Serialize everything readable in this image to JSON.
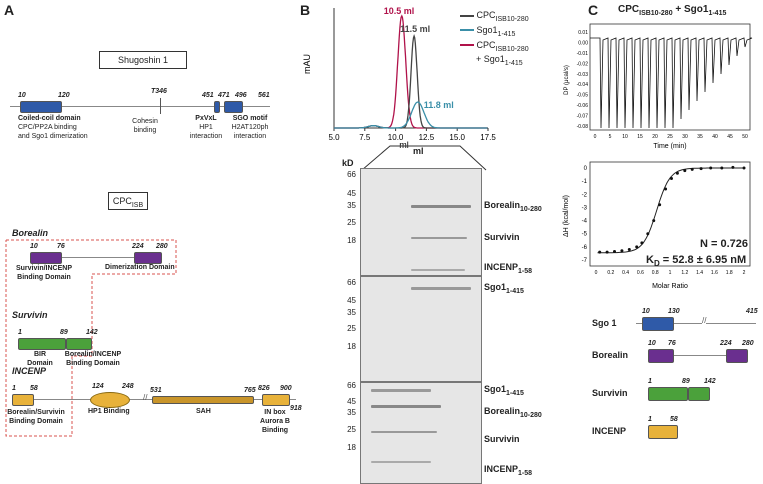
{
  "panels": {
    "a": "A",
    "b": "B",
    "c": "C"
  },
  "panelA": {
    "sgo_title": "Shugoshin 1",
    "sgo_nums": {
      "n10": "10",
      "n120": "120",
      "n346": "T346",
      "n451": "451",
      "n471": "471",
      "n496": "496",
      "n561": "561"
    },
    "coiled_title": "Coiled-coil domain",
    "coiled_desc1": "CPC/PP2A binding",
    "coiled_desc2": "and Sgo1 dimerization",
    "cohesin1": "Cohesin",
    "cohesin2": "binding",
    "pxvxl1": "PxVxL",
    "pxvxl2": "HP1",
    "pxvxl3": "interaction",
    "sgo_motif1": "SGO motif",
    "sgo_motif2": "H2AT120ph",
    "sgo_motif3": "interaction",
    "cpc_title": "CPC",
    "cpc_sub": "ISB",
    "borealin": "Borealin",
    "bor_nums": {
      "n10": "10",
      "n76": "76",
      "n224": "224",
      "n280": "280"
    },
    "bor_dom1a": "Survivin/INCENP",
    "bor_dom1b": "Binding Domain",
    "bor_dom2": "Dimerization Domain",
    "survivin": "Survivin",
    "sur_nums": {
      "n1": "1",
      "n89": "89",
      "n142": "142"
    },
    "sur_d1a": "BIR",
    "sur_d1b": "Domain",
    "sur_d2a": "Borealin/INCENP",
    "sur_d2b": "Binding Domain",
    "incenp": "INCENP",
    "inc_nums": {
      "n1": "1",
      "n58": "58",
      "n124": "124",
      "n248": "248",
      "n531": "531",
      "n765": "765",
      "n826": "826",
      "n900": "900",
      "n918": "918"
    },
    "inc_d1a": "Borealin/Survivin",
    "inc_d1b": "Binding Domain",
    "inc_hp1": "HP1 Binding",
    "inc_sah": "SAH",
    "inc_in1": "IN box",
    "inc_in2": "Aurora B",
    "inc_in3": "Binding"
  },
  "panelB": {
    "chart_data": {
      "type": "line",
      "xlabel": "ml",
      "ylabel": "mAU",
      "xlim": [
        5.0,
        17.5
      ],
      "xticks": [
        "5.0",
        "7.5",
        "10.0",
        "12.5",
        "15.0",
        "17.5"
      ],
      "series": [
        {
          "name": "CPC_ISB10-280 + Sgo1_1-415",
          "color": "#b0124a",
          "peak_ml": 10.5,
          "peak_label": "10.5 ml"
        },
        {
          "name": "CPC_ISB10-280",
          "color": "#444444",
          "peak_ml": 11.5,
          "peak_label": "11.5 ml"
        },
        {
          "name": "Sgo1_1-415",
          "color": "#3a8fa8",
          "peak_ml": 11.8,
          "peak_label": "11.8 ml"
        }
      ],
      "legend": {
        "l1a": "CPC",
        "l1b": "ISB10-280",
        "l2a": "Sgo1",
        "l2b": "1-415",
        "l3a": "CPC",
        "l3b": "ISB10-280",
        "l3c": "+ Sgo1",
        "l3d": "1-415"
      }
    },
    "gel_ml": "ml",
    "gel_kd": "kD",
    "markers": [
      "66",
      "45",
      "35",
      "25",
      "18"
    ],
    "gel1": {
      "borealin": "Borealin",
      "borealin_sub": "10-280",
      "survivin": "Survivin",
      "incenp": "INCENP",
      "incenp_sub": "1-58"
    },
    "gel2": {
      "sgo": "Sgo1",
      "sgo_sub": "1-415"
    },
    "gel3": {
      "sgo": "Sgo1",
      "sgo_sub": "1-415",
      "borealin": "Borealin",
      "borealin_sub": "10-280",
      "survivin": "Survivin",
      "incenp": "INCENP",
      "incenp_sub": "1-58"
    }
  },
  "panelC": {
    "title": "CPC",
    "title_sub1": "ISB10-280",
    "title_mid": " + Sgo1",
    "title_sub2": "1-415",
    "itc_ylabel": "DP (μcal/s)",
    "itc_xlabel": "Time (min)",
    "itc_yticks": [
      "0.01",
      "0.00",
      "-0.01",
      "-0.02",
      "-0.03",
      "-0.04",
      "-0.05",
      "-0.06",
      "-0.07",
      "-0.08"
    ],
    "itc_xticks": [
      "0",
      "5",
      "10",
      "15",
      "20",
      "25",
      "30",
      "35",
      "40",
      "45",
      "50"
    ],
    "iso_ylabel": "ΔH (kcal/mol)",
    "iso_xlabel": "Molar Ratio",
    "iso_yticks": [
      "0",
      "-1",
      "-2",
      "-3",
      "-4",
      "-5",
      "-6",
      "-7"
    ],
    "iso_xticks": [
      "0",
      "0.2",
      "0.4",
      "0.6",
      "0.8",
      "1",
      "1.2",
      "1.4",
      "1.6",
      "1.8",
      "2"
    ],
    "iso_points_x": [
      0.05,
      0.15,
      0.25,
      0.35,
      0.45,
      0.55,
      0.62,
      0.7,
      0.78,
      0.86,
      0.94,
      1.02,
      1.1,
      1.2,
      1.3,
      1.42,
      1.55,
      1.7,
      1.85,
      2.0
    ],
    "iso_points_y": [
      -6.4,
      -6.4,
      -6.35,
      -6.3,
      -6.2,
      -6.0,
      -5.7,
      -5.0,
      -4.0,
      -2.8,
      -1.6,
      -0.8,
      -0.4,
      -0.2,
      -0.1,
      -0.05,
      0,
      0,
      0.05,
      0
    ],
    "n_value": "N = 0.726",
    "kd_label": "K",
    "kd_sub": "D",
    "kd_value": " = 52.8 ± 6.95 nM",
    "constructs": [
      {
        "name": "Sgo 1",
        "n1": "10",
        "n2": "130",
        "n3": "415"
      },
      {
        "name": "Borealin",
        "n1": "10",
        "n2": "76",
        "n3": "224",
        "n4": "280"
      },
      {
        "name": "Survivin",
        "n1": "1",
        "n2": "89",
        "n3": "142"
      },
      {
        "name": "INCENP",
        "n1": "1",
        "n2": "58"
      }
    ]
  },
  "colors": {
    "blue": "#2f5aa8",
    "purple": "#6a2f8f",
    "green": "#4ba13b",
    "gold": "#e8b23a",
    "sah": "#c9952a",
    "red": "#b0124a",
    "teal": "#3a8fa8",
    "dashed": "#d9534f"
  }
}
